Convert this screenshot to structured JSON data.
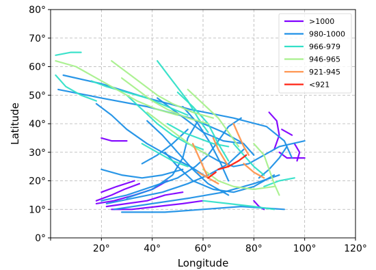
{
  "chart_data": {
    "type": "line",
    "title": "",
    "xlabel": "Longitude",
    "ylabel": "Latitude",
    "xlim": [
      0,
      120
    ],
    "ylim": [
      0,
      80
    ],
    "x_ticks": [
      0,
      20,
      40,
      60,
      80,
      100,
      120
    ],
    "y_ticks": [
      0,
      10,
      20,
      30,
      40,
      50,
      60,
      70,
      80
    ],
    "x_tick_labels": [
      "",
      "20°",
      "40°",
      "60°",
      "80°",
      "100°",
      "120°"
    ],
    "y_tick_labels": [
      "0°",
      "10°",
      "20°",
      "30°",
      "40°",
      "50°",
      "60°",
      "70°",
      "80°"
    ],
    "grid": true,
    "legend_position": "top-right",
    "series": [
      {
        "name": ">1000",
        "color": "#7f00ff",
        "tracks": [
          [
            [
              18,
              12
            ],
            [
              25,
              13
            ],
            [
              33,
              15
            ],
            [
              40,
              17
            ],
            [
              46,
              20
            ]
          ],
          [
            [
              18,
              13
            ],
            [
              24,
              15
            ],
            [
              29,
              17
            ],
            [
              35,
              19
            ]
          ],
          [
            [
              22,
              11
            ],
            [
              30,
              12
            ],
            [
              38,
              13
            ],
            [
              45,
              15
            ],
            [
              52,
              16
            ]
          ],
          [
            [
              24,
              10
            ],
            [
              32,
              10
            ],
            [
              42,
              11
            ],
            [
              52,
              12
            ],
            [
              60,
              13
            ]
          ],
          [
            [
              20,
              16
            ],
            [
              26,
              18
            ],
            [
              33,
              20
            ]
          ],
          [
            [
              86,
              44
            ],
            [
              89,
              41
            ],
            [
              90,
              36
            ],
            [
              88,
              31
            ]
          ],
          [
            [
              91,
              38
            ],
            [
              95,
              36
            ]
          ],
          [
            [
              96,
              33
            ],
            [
              98,
              30
            ],
            [
              97,
              27
            ]
          ],
          [
            [
              20,
              35
            ],
            [
              24,
              34
            ],
            [
              30,
              34
            ]
          ],
          [
            [
              90,
              30
            ],
            [
              93,
              28
            ],
            [
              100,
              28
            ]
          ],
          [
            [
              80,
              13
            ],
            [
              82,
              11
            ],
            [
              84,
              10
            ]
          ]
        ]
      },
      {
        "name": "980-1000",
        "color": "#1e90e6",
        "tracks": [
          [
            [
              5,
              57
            ],
            [
              20,
              54
            ],
            [
              38,
              49
            ],
            [
              55,
              45
            ],
            [
              72,
              42
            ],
            [
              85,
              39
            ],
            [
              92,
              34
            ],
            [
              95,
              28
            ]
          ],
          [
            [
              3,
              52
            ],
            [
              20,
              49
            ],
            [
              38,
              46
            ],
            [
              55,
              42
            ],
            [
              68,
              37
            ],
            [
              76,
              33
            ],
            [
              80,
              29
            ]
          ],
          [
            [
              20,
              13
            ],
            [
              30,
              15
            ],
            [
              40,
              18
            ],
            [
              50,
              21
            ],
            [
              57,
              25
            ],
            [
              62,
              29
            ],
            [
              66,
              34
            ],
            [
              70,
              39
            ],
            [
              75,
              42
            ]
          ],
          [
            [
              22,
              12
            ],
            [
              33,
              14
            ],
            [
              44,
              16
            ],
            [
              54,
              19
            ],
            [
              62,
              22
            ],
            [
              70,
              26
            ],
            [
              76,
              31
            ]
          ],
          [
            [
              25,
              10
            ],
            [
              40,
              12
            ],
            [
              55,
              14
            ],
            [
              68,
              16
            ],
            [
              80,
              19
            ],
            [
              90,
              22
            ]
          ],
          [
            [
              28,
              9
            ],
            [
              45,
              9
            ],
            [
              60,
              10
            ],
            [
              75,
              11
            ],
            [
              92,
              10
            ]
          ],
          [
            [
              30,
              14
            ],
            [
              40,
              17
            ],
            [
              48,
              22
            ],
            [
              52,
              28
            ],
            [
              54,
              35
            ],
            [
              58,
              41
            ]
          ],
          [
            [
              18,
              47
            ],
            [
              24,
              43
            ],
            [
              30,
              38
            ],
            [
              38,
              33
            ],
            [
              46,
              29
            ],
            [
              55,
              25
            ],
            [
              62,
              21
            ]
          ],
          [
            [
              38,
              41
            ],
            [
              44,
              36
            ],
            [
              50,
              30
            ],
            [
              56,
              24
            ],
            [
              62,
              19
            ],
            [
              70,
              15
            ]
          ],
          [
            [
              45,
              30
            ],
            [
              50,
              25
            ],
            [
              56,
              20
            ],
            [
              64,
              17
            ],
            [
              72,
              16
            ],
            [
              80,
              18
            ],
            [
              88,
              22
            ]
          ],
          [
            [
              52,
              46
            ],
            [
              58,
              40
            ],
            [
              63,
              33
            ],
            [
              67,
              26
            ],
            [
              70,
              20
            ]
          ],
          [
            [
              60,
              30
            ],
            [
              66,
              27
            ],
            [
              72,
              25
            ],
            [
              78,
              26
            ],
            [
              84,
              29
            ],
            [
              90,
              32
            ],
            [
              100,
              34
            ]
          ],
          [
            [
              20,
              24
            ],
            [
              28,
              22
            ],
            [
              36,
              21
            ],
            [
              44,
              22
            ],
            [
              52,
              24
            ]
          ],
          [
            [
              42,
              49
            ],
            [
              48,
              45
            ],
            [
              54,
              41
            ],
            [
              60,
              37
            ],
            [
              68,
              34
            ],
            [
              76,
              33
            ]
          ],
          [
            [
              36,
              26
            ],
            [
              42,
              29
            ],
            [
              48,
              33
            ],
            [
              54,
              38
            ]
          ],
          [
            [
              82,
              21
            ],
            [
              86,
              24
            ],
            [
              90,
              28
            ],
            [
              93,
              32
            ]
          ]
        ]
      },
      {
        "name": "966-979",
        "color": "#33e0c8",
        "tracks": [
          [
            [
              2,
              64
            ],
            [
              8,
              65
            ],
            [
              12,
              65
            ]
          ],
          [
            [
              16,
              55
            ],
            [
              22,
              53
            ],
            [
              30,
              51
            ],
            [
              38,
              49
            ],
            [
              46,
              46
            ],
            [
              54,
              43
            ]
          ],
          [
            [
              42,
              62
            ],
            [
              48,
              55
            ],
            [
              54,
              48
            ],
            [
              58,
              42
            ],
            [
              62,
              37
            ]
          ],
          [
            [
              30,
              50
            ],
            [
              36,
              45
            ],
            [
              42,
              40
            ],
            [
              48,
              36
            ],
            [
              54,
              33
            ],
            [
              60,
              31
            ]
          ],
          [
            [
              50,
              51
            ],
            [
              56,
              46
            ],
            [
              62,
              40
            ],
            [
              66,
              33
            ],
            [
              70,
              27
            ]
          ],
          [
            [
              2,
              57
            ],
            [
              6,
              53
            ],
            [
              12,
              50
            ],
            [
              18,
              48
            ]
          ],
          [
            [
              36,
              33
            ],
            [
              42,
              30
            ],
            [
              48,
              27
            ],
            [
              54,
              25
            ]
          ],
          [
            [
              72,
              33
            ],
            [
              76,
              29
            ],
            [
              80,
              25
            ],
            [
              84,
              22
            ]
          ],
          [
            [
              46,
              40
            ],
            [
              52,
              37
            ],
            [
              58,
              35
            ],
            [
              64,
              33
            ],
            [
              70,
              32
            ]
          ],
          [
            [
              60,
              13
            ],
            [
              70,
              12
            ],
            [
              80,
              11
            ],
            [
              88,
              10
            ]
          ],
          [
            [
              84,
              18
            ],
            [
              90,
              20
            ],
            [
              96,
              21
            ]
          ]
        ]
      },
      {
        "name": "946-965",
        "color": "#a8f08c",
        "tracks": [
          [
            [
              2,
              62
            ],
            [
              10,
              60
            ],
            [
              18,
              56
            ],
            [
              26,
              52
            ],
            [
              34,
              48
            ],
            [
              42,
              45
            ],
            [
              50,
              43
            ]
          ],
          [
            [
              24,
              62
            ],
            [
              30,
              58
            ],
            [
              36,
              54
            ],
            [
              42,
              50
            ],
            [
              48,
              47
            ],
            [
              56,
              44
            ],
            [
              64,
              42
            ]
          ],
          [
            [
              28,
              56
            ],
            [
              34,
              52
            ],
            [
              40,
              48
            ],
            [
              46,
              45
            ],
            [
              54,
              42
            ],
            [
              62,
              40
            ]
          ],
          [
            [
              54,
              52
            ],
            [
              60,
              47
            ],
            [
              66,
              42
            ],
            [
              70,
              37
            ],
            [
              74,
              32
            ]
          ],
          [
            [
              38,
              44
            ],
            [
              44,
              40
            ],
            [
              50,
              36
            ],
            [
              56,
              32
            ],
            [
              62,
              29
            ]
          ],
          [
            [
              60,
              24
            ],
            [
              66,
              20
            ],
            [
              72,
              18
            ],
            [
              80,
              17
            ],
            [
              88,
              18
            ]
          ],
          [
            [
              80,
              33
            ],
            [
              84,
              29
            ],
            [
              86,
              24
            ],
            [
              88,
              19
            ],
            [
              90,
              15
            ]
          ]
        ]
      },
      {
        "name": "921-945",
        "color": "#ff9650",
        "tracks": [
          [
            [
              56,
              33
            ],
            [
              58,
              29
            ],
            [
              60,
              25
            ],
            [
              62,
              21
            ]
          ],
          [
            [
              64,
              35
            ],
            [
              66,
              31
            ],
            [
              68,
              28
            ],
            [
              70,
              25
            ]
          ],
          [
            [
              72,
              40
            ],
            [
              74,
              36
            ],
            [
              76,
              32
            ],
            [
              78,
              29
            ]
          ],
          [
            [
              58,
              23
            ],
            [
              62,
              21
            ],
            [
              66,
              19
            ]
          ],
          [
            [
              76,
              26
            ],
            [
              80,
              23
            ],
            [
              84,
              21
            ]
          ]
        ]
      },
      {
        "name": "<921",
        "color": "#ff2010",
        "tracks": [
          [
            [
              66,
              24
            ],
            [
              70,
              25
            ],
            [
              74,
              27
            ],
            [
              77,
              29
            ]
          ],
          [
            [
              62,
              21
            ],
            [
              65,
              23
            ]
          ]
        ]
      }
    ]
  }
}
